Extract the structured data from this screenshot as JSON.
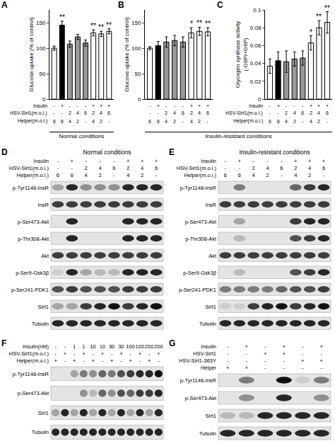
{
  "chart_data": [
    {
      "panel": "A",
      "type": "bar",
      "ylabel": "Glucose uptake (% of control)",
      "categories": [
        null,
        null,
        null,
        null,
        null,
        null,
        null,
        null
      ],
      "values": [
        100,
        145,
        108,
        122,
        110,
        130,
        128,
        133
      ],
      "errors": [
        4,
        8,
        6,
        5,
        6,
        6,
        5,
        5
      ],
      "stars": [
        null,
        "**",
        null,
        null,
        null,
        "**",
        "**",
        "**"
      ],
      "colors": [
        "#ffffff",
        "#000000",
        "#999999",
        "#999999",
        "#999999",
        "#ffffff",
        "#ffffff",
        "#ffffff"
      ],
      "ylim": [
        0,
        175
      ],
      "yticks": [
        0,
        50,
        100,
        150
      ],
      "grid": false,
      "tick_labels": "y",
      "conditions": [
        {
          "label": "Insulin",
          "values": [
            "-",
            "+",
            "-",
            "-",
            "-",
            "+",
            "+",
            "+"
          ]
        },
        {
          "label": "HSV-Sirt1(m.o.i.)",
          "values": [
            "-",
            "-",
            2,
            4,
            6,
            2,
            4,
            6
          ]
        },
        {
          "label": "Helper(m.o.i.)",
          "values": [
            6,
            6,
            4,
            2,
            "-",
            4,
            2,
            "-"
          ]
        }
      ]
    },
    {
      "panel": "B",
      "type": "bar",
      "ylabel": "Glucose uptake (% of control)",
      "categories": [
        null,
        null,
        null,
        null,
        null,
        null,
        null,
        null
      ],
      "values": [
        100,
        105,
        112,
        115,
        112,
        130,
        133,
        132
      ],
      "errors": [
        3,
        8,
        10,
        10,
        10,
        10,
        8,
        8
      ],
      "stars": [
        null,
        null,
        null,
        null,
        null,
        "*",
        "**",
        "**"
      ],
      "colors": [
        "#ffffff",
        "#000000",
        "#999999",
        "#999999",
        "#999999",
        "#ffffff",
        "#ffffff",
        "#ffffff"
      ],
      "ylim": [
        0,
        175
      ],
      "yticks": [
        0,
        50,
        100,
        150
      ],
      "grid": false,
      "tick_labels": "y",
      "conditions": [
        {
          "values": [
            "-",
            "+",
            "-",
            "-",
            "-",
            "+",
            "+",
            "+"
          ]
        },
        {
          "values": [
            "-",
            "-",
            2,
            4,
            6,
            2,
            4,
            6
          ]
        },
        {
          "values": [
            6,
            6,
            4,
            2,
            "-",
            4,
            2,
            "-"
          ]
        }
      ]
    },
    {
      "panel": "C",
      "type": "bar",
      "ylabel": "Glycogen synthase activity (-G6P/+G6P)",
      "categories": [
        null,
        null,
        null,
        null,
        null,
        null,
        null,
        null
      ],
      "values": [
        0.037,
        0.043,
        0.042,
        0.045,
        0.046,
        0.063,
        0.08,
        0.086
      ],
      "errors": [
        0.008,
        0.01,
        0.012,
        0.008,
        0.008,
        0.008,
        0.008,
        0.012
      ],
      "stars": [
        null,
        null,
        null,
        null,
        null,
        "*",
        "**",
        "**"
      ],
      "colors": [
        "#ffffff",
        "#000000",
        "#999999",
        "#999999",
        "#999999",
        "#ffffff",
        "#ffffff",
        "#ffffff"
      ],
      "ylim": [
        0,
        0.1
      ],
      "yticks": [
        0,
        0.02,
        0.04,
        0.06,
        0.08,
        0.1
      ],
      "grid": false,
      "tick_labels": "y",
      "conditions": [
        {
          "label": "Insulin",
          "values": [
            "-",
            "+",
            "-",
            "-",
            "-",
            "+",
            "+",
            "+"
          ]
        },
        {
          "label": "HSV-Sirt1(m.o.i.)",
          "values": [
            "-",
            "-",
            2,
            4,
            6,
            2,
            4,
            6
          ]
        },
        {
          "label": "Helper(m.o.i.)",
          "values": [
            6,
            6,
            4,
            2,
            "-",
            4,
            2,
            "-"
          ]
        }
      ]
    }
  ],
  "condition_groups": [
    {
      "label": "Normal conditions",
      "panels": [
        "A"
      ]
    },
    {
      "label": "Insulin-resistant conditions",
      "panels": [
        "B",
        "C"
      ]
    }
  ],
  "blots": [
    {
      "panel": "D",
      "title": "Normal conditions",
      "header": [
        {
          "label": "Insulin",
          "values": [
            "-",
            "+",
            "-",
            "-",
            "-",
            "+",
            "+",
            "+"
          ]
        },
        {
          "label": "HSV-Sirt1(m.o.i.)",
          "values": [
            "-",
            "-",
            2,
            4,
            6,
            2,
            4,
            6
          ]
        },
        {
          "label": "Helper(m.o.i.)",
          "values": [
            6,
            6,
            4,
            2,
            "-",
            4,
            2,
            "-"
          ]
        }
      ],
      "rows": [
        {
          "label": "p-Tyr1146-InsR",
          "bands": [
            0.3,
            0.9,
            0.4,
            0.4,
            0.4,
            0.9,
            0.9,
            0.9
          ]
        },
        {
          "label": "InsR",
          "bands": [
            0.8,
            0.8,
            0.8,
            0.8,
            0.8,
            0.8,
            0.8,
            0.8
          ]
        },
        {
          "label": "p-Ser473-Akt",
          "bands": [
            0,
            0.9,
            0,
            0,
            0,
            0.9,
            0.9,
            0.9
          ]
        },
        {
          "label": "p-Thr308-Akt",
          "bands": [
            0,
            0.9,
            0,
            0,
            0,
            0.9,
            0.9,
            0.9
          ]
        },
        {
          "label": "Akt",
          "bands": [
            0.8,
            0.8,
            0.8,
            0.8,
            0.8,
            0.8,
            0.8,
            0.8
          ]
        },
        {
          "label": "p-Ser9-Gsk3β",
          "bands": [
            0.1,
            0.9,
            0.3,
            0.2,
            0.2,
            0.9,
            0.9,
            0.9
          ]
        },
        {
          "label": "p-Ser241-PDK1",
          "bands": [
            0.7,
            0.8,
            0.7,
            0.7,
            0.7,
            0.8,
            0.8,
            0.8
          ]
        },
        {
          "label": "Sirt1",
          "bands": [
            0.3,
            0.3,
            0.8,
            0.9,
            1,
            0.8,
            0.9,
            1
          ]
        },
        {
          "label": "Tubulin",
          "bands": [
            0.9,
            0.9,
            0.9,
            0.9,
            0.9,
            0.9,
            0.9,
            0.9
          ]
        }
      ]
    },
    {
      "panel": "E",
      "title": "Insulin-resistant conditions",
      "header": [
        {
          "label": "Insulin",
          "values": [
            "-",
            "+",
            "-",
            "-",
            "-",
            "+",
            "+",
            "+"
          ]
        },
        {
          "label": "HSV-Sirt1(m.o.i.)",
          "values": [
            "-",
            "-",
            2,
            4,
            6,
            2,
            4,
            6
          ]
        },
        {
          "label": "Helper(m.o.i.)",
          "values": [
            6,
            6,
            4,
            2,
            "-",
            4,
            2,
            "-"
          ]
        }
      ],
      "rows": [
        {
          "label": "p-Tyr1146-InsR",
          "bands": [
            0,
            0.5,
            0,
            0,
            0,
            0.6,
            0.8,
            0.9
          ]
        },
        {
          "label": "InsR",
          "bands": [
            0.8,
            0.8,
            0.8,
            0.8,
            0.8,
            0.8,
            0.8,
            0.8
          ]
        },
        {
          "label": "p-Ser473-Akt",
          "bands": [
            0,
            0.3,
            0,
            0,
            0,
            0.8,
            0.9,
            0.9
          ]
        },
        {
          "label": "p-Thr308-Akt",
          "bands": [
            0,
            0.2,
            0,
            0,
            0,
            0.7,
            0.8,
            0.9
          ]
        },
        {
          "label": "Akt",
          "bands": [
            0.8,
            0.8,
            0.8,
            0.8,
            0.8,
            0.8,
            0.8,
            0.8
          ]
        },
        {
          "label": "p-Ser9-Gsk3β",
          "bands": [
            0,
            0.2,
            0,
            0,
            0,
            0.7,
            0.8,
            0.9
          ]
        },
        {
          "label": "p-Ser241-PDK1",
          "bands": [
            0.5,
            0.5,
            0.5,
            0.5,
            0.6,
            0.7,
            0.7,
            0.8
          ]
        },
        {
          "label": "Sirt1",
          "bands": [
            0.1,
            0.1,
            0.8,
            0.9,
            1,
            0.8,
            0.9,
            1
          ]
        },
        {
          "label": "Tubulin",
          "bands": [
            0.9,
            0.9,
            0.9,
            0.9,
            0.9,
            0.9,
            0.9,
            0.9
          ]
        }
      ]
    },
    {
      "panel": "F",
      "header": [
        {
          "label": "Insulin(nM)",
          "values": [
            "-",
            "-",
            1,
            1,
            10,
            10,
            30,
            30,
            100,
            100,
            200,
            200
          ]
        },
        {
          "label": "HSV-Sirt1(m.o.i.)",
          "values": [
            "-",
            "+",
            "-",
            "+",
            "-",
            "+",
            "-",
            "+",
            "-",
            "+",
            "-",
            "+"
          ]
        },
        {
          "label": "Helper(m.o.i.)",
          "values": [
            "+",
            "-",
            "+",
            "-",
            "+",
            "-",
            "+",
            "-",
            "+",
            "-",
            "+",
            "-"
          ]
        }
      ],
      "rows": [
        {
          "label": "p-Tyr1146-InsR",
          "bands": [
            0,
            0,
            0.3,
            0.5,
            0.4,
            0.6,
            0.5,
            0.7,
            0.8,
            0.9,
            0.9,
            1
          ]
        },
        {
          "label": "p-Ser473-Akt",
          "bands": [
            0,
            0,
            0,
            0.4,
            0.2,
            0.6,
            0.4,
            0.7,
            0.6,
            0.8,
            0.8,
            0.9
          ]
        },
        {
          "label": "Sirt1",
          "bands": [
            0.3,
            0.9,
            0.3,
            0.9,
            0.3,
            0.9,
            0.3,
            0.9,
            0.3,
            0.9,
            0.3,
            0.9
          ]
        },
        {
          "label": "Tubulin",
          "bands": [
            0.9,
            0.9,
            0.9,
            0.9,
            0.9,
            0.9,
            0.9,
            0.9,
            0.9,
            0.9,
            0.9,
            0.9
          ]
        }
      ]
    },
    {
      "panel": "G",
      "header": [
        {
          "label": "Insulin",
          "values": [
            "-",
            "+",
            "-",
            "+",
            "-",
            "+"
          ]
        },
        {
          "label": "HSV-Sirt1",
          "values": [
            "-",
            "-",
            "+",
            "+",
            "-",
            "-"
          ]
        },
        {
          "label": "HSV-Sirt1-363Y",
          "values": [
            "-",
            "-",
            "-",
            "-",
            "+",
            "+"
          ]
        },
        {
          "label": "Helper",
          "values": [
            "+",
            "+",
            "-",
            "-",
            "-",
            "-"
          ]
        }
      ],
      "rows": [
        {
          "label": "p-Tyr1146-InsR",
          "bands": [
            0,
            0.5,
            0,
            1,
            0.1,
            0.5
          ]
        },
        {
          "label": "p-Ser473-Akt",
          "bands": [
            0,
            0.4,
            0,
            0.9,
            0,
            0.4
          ]
        },
        {
          "label": "Sirt1",
          "bands": [
            0.2,
            0.2,
            0.9,
            0.9,
            0.9,
            0.9
          ]
        },
        {
          "label": "Tubulin",
          "bands": [
            0.9,
            0.9,
            0.9,
            0.9,
            0.9,
            0.9
          ]
        }
      ]
    }
  ]
}
